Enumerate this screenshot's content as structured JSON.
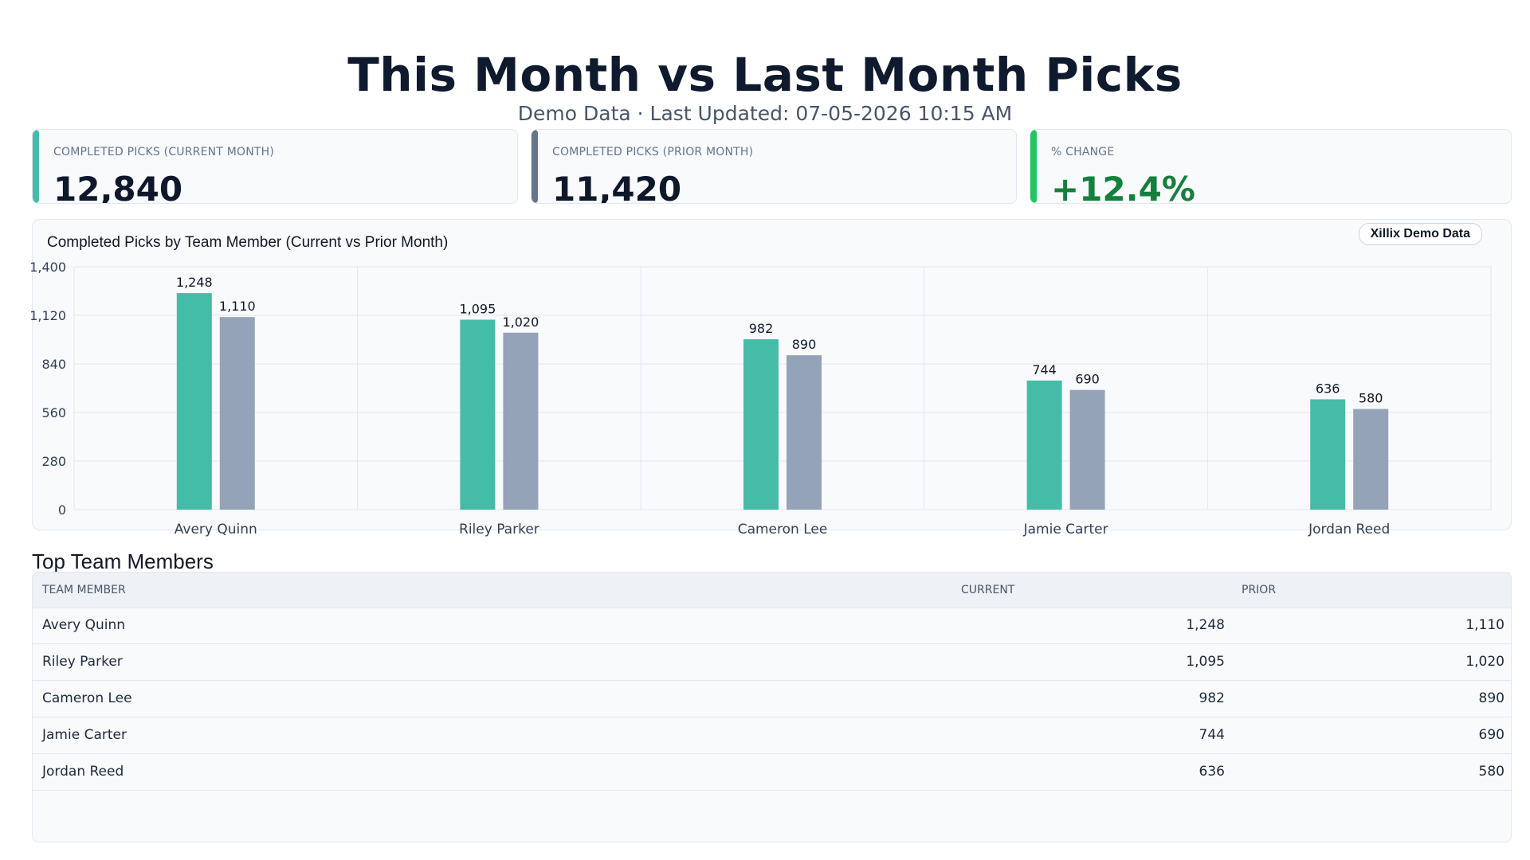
{
  "header": {
    "title": "This Month vs Last Month Picks",
    "subtitle": "Demo Data · Last Updated: 07-05-2026 10:15 AM"
  },
  "kpis": [
    {
      "label": "COMPLETED PICKS (CURRENT MONTH)",
      "value": "12,840",
      "accent": "#45bca8"
    },
    {
      "label": "COMPLETED PICKS (PRIOR MONTH)",
      "value": "11,420",
      "accent": "#64748b"
    },
    {
      "label": "% CHANGE",
      "value": "+12.4%",
      "accent": "#22c55e"
    }
  ],
  "chart": {
    "badge": "Xillix Demo Data"
  },
  "chart_data": {
    "type": "bar",
    "title": "Completed Picks by Team Member (Current vs Prior Month)",
    "categories": [
      "Avery Quinn",
      "Riley Parker",
      "Cameron Lee",
      "Jamie Carter",
      "Jordan Reed"
    ],
    "series": [
      {
        "values": [
          1248,
          1095,
          982,
          744,
          636
        ],
        "color": "#45bca8"
      },
      {
        "values": [
          1110,
          1020,
          890,
          690,
          580
        ],
        "color": "#94a3b8"
      }
    ],
    "value_labels": [
      [
        "1,248",
        "1,095",
        "982",
        "744",
        "636"
      ],
      [
        "1,110",
        "1,020",
        "890",
        "690",
        "580"
      ]
    ],
    "ylim": [
      0,
      1400
    ],
    "yticks": [
      0,
      280,
      560,
      840,
      1120,
      1400
    ],
    "ytick_labels": [
      "0",
      "280",
      "560",
      "840",
      "1,120",
      "1,400"
    ],
    "grid": true,
    "legend": "none"
  },
  "table": {
    "heading": "Top Team Members",
    "columns": [
      "TEAM MEMBER",
      "CURRENT",
      "PRIOR"
    ],
    "rows": [
      {
        "name": "Avery Quinn",
        "current": "1,248",
        "prior": "1,110"
      },
      {
        "name": "Riley Parker",
        "current": "1,095",
        "prior": "1,020"
      },
      {
        "name": "Cameron Lee",
        "current": "982",
        "prior": "890"
      },
      {
        "name": "Jamie Carter",
        "current": "744",
        "prior": "690"
      },
      {
        "name": "Jordan Reed",
        "current": "636",
        "prior": "580"
      }
    ]
  }
}
